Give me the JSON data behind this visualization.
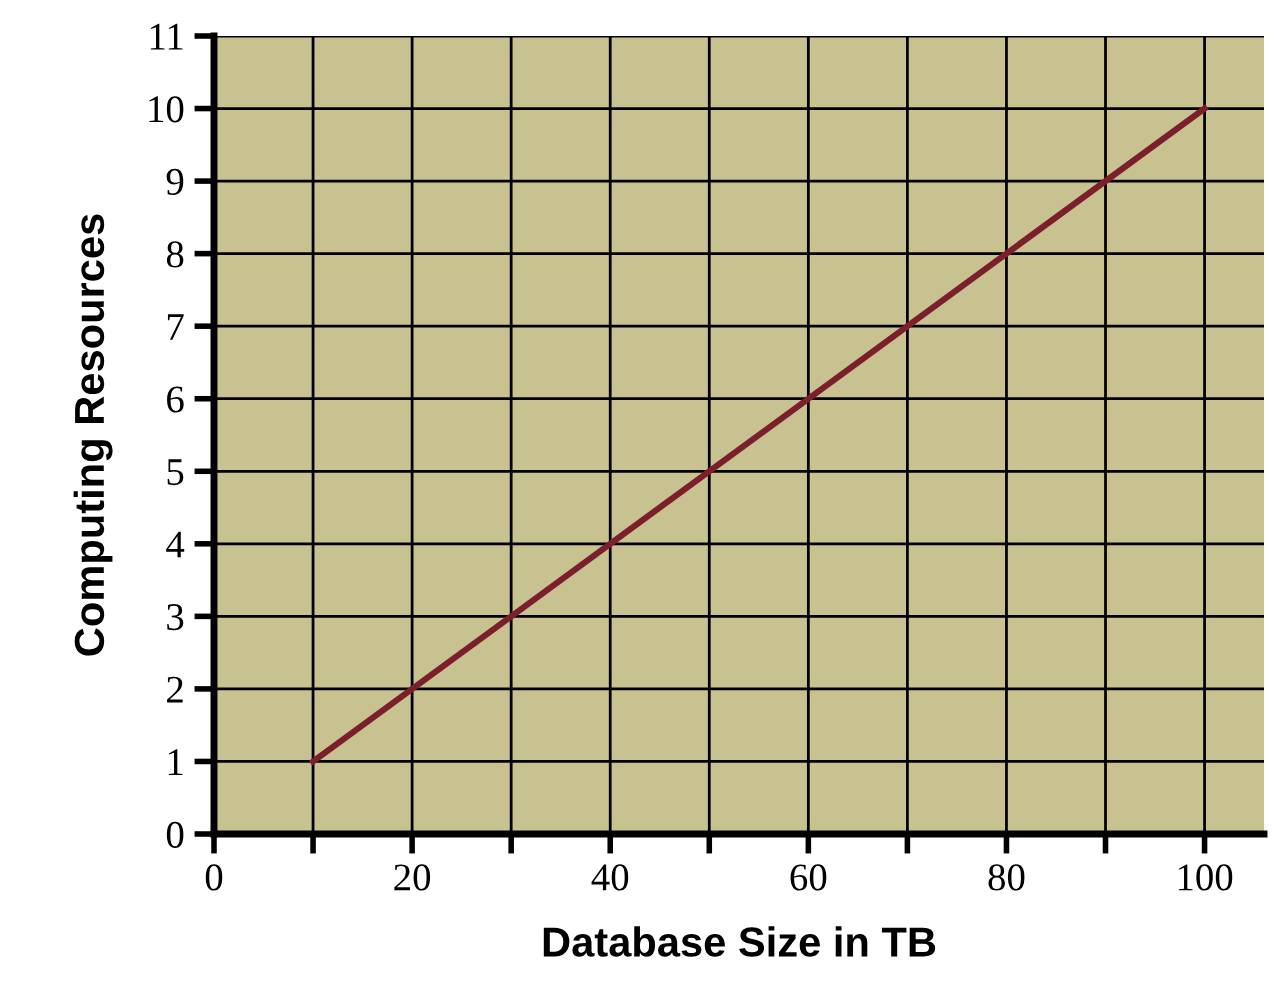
{
  "chart_data": {
    "type": "line",
    "xlabel": "Database Size in TB",
    "ylabel": "Computing Resources",
    "series": [
      {
        "color": "#7a1f2b",
        "x": [
          10,
          100
        ],
        "values": [
          1,
          10
        ]
      }
    ],
    "xlim": [
      0,
      106
    ],
    "ylim": [
      0,
      11
    ],
    "xticks": [
      0,
      {
        "value": 10,
        "label": null
      },
      20,
      {
        "value": 30,
        "label": null
      },
      40,
      {
        "value": 50,
        "label": null
      },
      60,
      {
        "value": 70,
        "label": null
      },
      80,
      {
        "value": 90,
        "label": null
      },
      100
    ],
    "yticks": [
      0,
      1,
      2,
      3,
      4,
      5,
      6,
      7,
      8,
      9,
      10,
      11
    ],
    "grid": true,
    "line_style": "solid",
    "marker": "none"
  }
}
